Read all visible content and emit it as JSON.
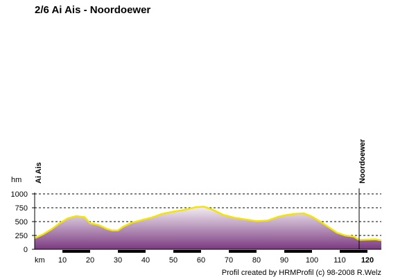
{
  "title": "2/6 Ai Ais - Noordoewer",
  "credit": "Profil created by HRMProfil (c) 98-2008 R.Welz",
  "colors": {
    "line": "#f2e600",
    "fill_top": "#f4eef4",
    "fill_bottom": "#7a3a80",
    "grid": "#000000",
    "band": "#000000"
  },
  "chart_data": {
    "type": "area",
    "title": "2/6 Ai Ais - Noordoewer",
    "xlabel": "km",
    "ylabel": "hm",
    "xlim": [
      0,
      125
    ],
    "ylim": [
      0,
      1000
    ],
    "yticks": [
      0,
      250,
      500,
      750,
      1000
    ],
    "yticks_labels": [
      "0",
      "250",
      "500",
      "750",
      "1000"
    ],
    "xticks": [
      10,
      20,
      30,
      40,
      50,
      60,
      70,
      80,
      90,
      100,
      110,
      120
    ],
    "xticks_labels": [
      "10",
      "20",
      "30",
      "40",
      "50",
      "60",
      "70",
      "80",
      "90",
      "100",
      "110",
      "120"
    ],
    "grid": true,
    "places": [
      {
        "name": "Ai Ais",
        "km": 0
      },
      {
        "name": "Noordoewer",
        "km": 117
      }
    ],
    "series": [
      {
        "x": [
          0,
          3,
          6,
          9,
          12,
          15,
          18,
          20,
          23,
          26,
          28,
          30,
          32,
          35,
          38,
          42,
          46,
          50,
          54,
          58,
          61,
          64,
          68,
          72,
          76,
          80,
          84,
          88,
          91,
          94,
          97,
          100,
          103,
          106,
          109,
          112,
          115,
          117,
          120,
          123,
          125
        ],
        "y": [
          200,
          270,
          360,
          470,
          560,
          600,
          580,
          470,
          440,
          370,
          340,
          340,
          410,
          480,
          520,
          570,
          640,
          680,
          710,
          760,
          770,
          720,
          620,
          570,
          540,
          510,
          520,
          590,
          620,
          640,
          650,
          590,
          500,
          400,
          300,
          250,
          230,
          170,
          175,
          180,
          160
        ]
      }
    ]
  }
}
